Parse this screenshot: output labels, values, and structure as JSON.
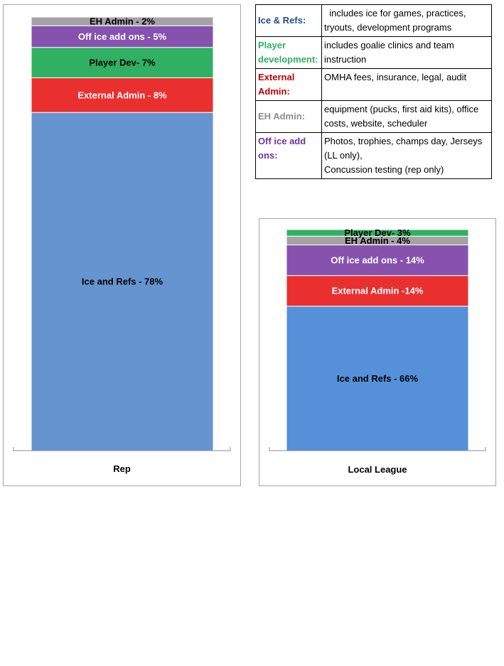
{
  "chart_data": [
    {
      "type": "bar",
      "stacked": true,
      "categories": [
        "Rep"
      ],
      "series": [
        {
          "value": 78,
          "label": "Ice and Refs  - 78%",
          "color": "#6594cf",
          "label_color": "#000000"
        },
        {
          "value": 8,
          "label": "External Admin - 8%",
          "color": "#e9302f",
          "label_color": "#ffffff"
        },
        {
          "value": 7,
          "label": "Player Dev- 7%",
          "color": "#2fb062",
          "label_color": "#000000"
        },
        {
          "value": 5,
          "label": "Off ice add ons - 5%",
          "color": "#8652ae",
          "label_color": "#ffffff"
        },
        {
          "value": 2,
          "label": "EH Admin - 2%",
          "color": "#a3a3a3",
          "label_color": "#000000"
        }
      ],
      "ylim": [
        0,
        100
      ],
      "grid": false,
      "legend": "table to the right"
    },
    {
      "type": "bar",
      "stacked": true,
      "categories": [
        "Local League"
      ],
      "series": [
        {
          "value": 66,
          "label": "Ice and Refs  - 66%",
          "color": "#5590d8",
          "label_color": "#000000"
        },
        {
          "value": 14,
          "label": "External Admin -14%",
          "color": "#e9302f",
          "label_color": "#ffffff"
        },
        {
          "value": 14,
          "label": "Off ice add ons - 14%",
          "color": "#8652ae",
          "label_color": "#ffffff"
        },
        {
          "value": 4,
          "label": "EH Admin - 4%",
          "color": "#a3a3a3",
          "label_color": "#000000"
        },
        {
          "value": 3,
          "label": "Player Dev- 3%",
          "color": "#2fb062",
          "label_color": "#000000"
        }
      ],
      "ylim": [
        0,
        100
      ],
      "grid": false,
      "legend": "table above"
    }
  ],
  "legend_table": [
    {
      "term": "Ice & Refs:",
      "term_color": "#1f4e8c",
      "desc": "  includes ice for games, practices, tryouts, development programs"
    },
    {
      "term": "Player development:",
      "term_color": "#2fb062",
      "desc": "includes goalie clinics and team instruction"
    },
    {
      "term": "External Admin:",
      "term_color": "#c00000",
      "desc": "OMHA fees, insurance, legal, audit"
    },
    {
      "term": "EH Admin:",
      "term_color": "#8c8c8c",
      "desc": "equipment (pucks, first aid kits), office costs, website, scheduler"
    },
    {
      "term": "Off ice add ons:",
      "term_color": "#7030a0",
      "desc": "Photos, trophies, champs day, Jerseys (LL only),\nConcussion testing (rep only)"
    }
  ]
}
